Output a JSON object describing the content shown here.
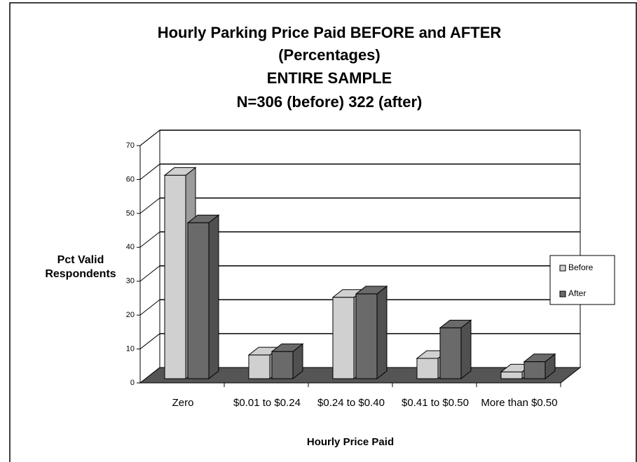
{
  "chart_data": {
    "type": "bar3d",
    "title": "Hourly Parking Price Paid BEFORE and AFTER",
    "subtitle": [
      "(Percentages)",
      "ENTIRE SAMPLE",
      "N=306 (before) 322 (after)"
    ],
    "y_label": "Pct Valid Respondents",
    "x_label": "Hourly Price Paid",
    "categories": [
      "Zero",
      "$0.01 to $0.24",
      "$0.24 to $0.40",
      "$0.41 to $0.50",
      "More than $0.50"
    ],
    "series": [
      {
        "name": "Before",
        "color": "#d0d0d0",
        "values": [
          60,
          7,
          24,
          6,
          2
        ]
      },
      {
        "name": "After",
        "color": "#6a6a6a",
        "values": [
          46,
          8,
          25,
          15,
          5
        ]
      }
    ],
    "ylim": [
      0,
      70
    ],
    "yticks": [
      0,
      10,
      20,
      30,
      40,
      50,
      60,
      70
    ],
    "grid": true,
    "legend": "right"
  }
}
